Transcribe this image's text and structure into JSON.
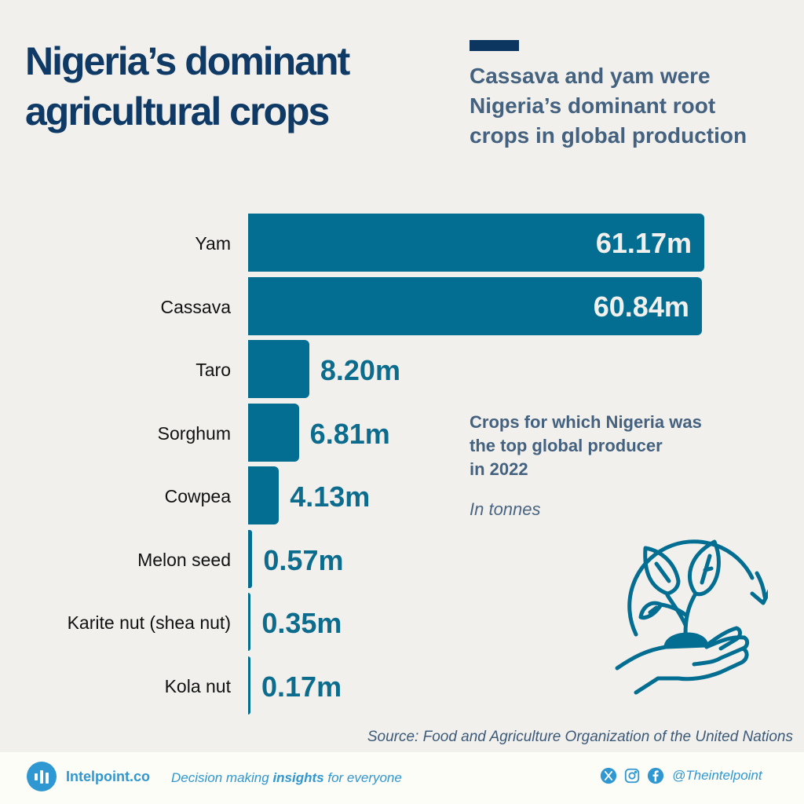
{
  "header": {
    "title_lines": [
      "Nigeria’s dominant",
      "agricultural crops"
    ],
    "subtitle_lines": [
      "Cassava and yam were",
      "Nigeria’s dominant root",
      "crops in global production"
    ],
    "accent_color": "#0c355f"
  },
  "note": {
    "lines": [
      "Crops for which Nigeria was",
      "the top global producer",
      "in 2022"
    ],
    "unit": "In tonnes"
  },
  "source": "Source: Food and Agriculture Organization of the United Nations",
  "footer": {
    "brand": "Intelpoint.co",
    "tagline_pre": "Decision making ",
    "tagline_bold": "insights",
    "tagline_post": " for everyone",
    "handle": "@Theintelpoint",
    "icons": [
      "x-icon",
      "instagram-icon",
      "facebook-icon"
    ]
  },
  "colors": {
    "bar": "#036e91",
    "title": "#103a66",
    "subtitle": "#44627f",
    "background": "#f1f0ed",
    "footer_bg": "#fdfdf7",
    "brand": "#2f97d1"
  },
  "chart_data": {
    "type": "bar",
    "orientation": "horizontal",
    "title": "Crops for which Nigeria was the top global producer in 2022",
    "unit": "tonnes",
    "categories": [
      "Yam",
      "Cassava",
      "Taro",
      "Sorghum",
      "Cowpea",
      "Melon seed",
      "Karite nut (shea nut)",
      "Kola nut"
    ],
    "values": [
      61.17,
      60.84,
      8.2,
      6.81,
      4.13,
      0.57,
      0.35,
      0.17
    ],
    "value_labels": [
      "61.17m",
      "60.84m",
      "8.20m",
      "6.81m",
      "4.13m",
      "0.57m",
      "0.35m",
      "0.17m"
    ],
    "xlabel": "",
    "ylabel": "",
    "grid": false,
    "legend": null
  }
}
